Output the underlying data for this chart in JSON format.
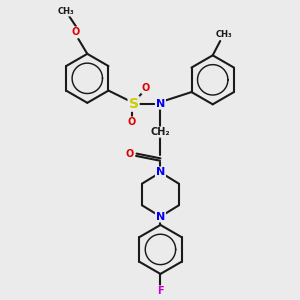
{
  "bg_color": "#ebebeb",
  "bond_color": "#1a1a1a",
  "bond_width": 1.5,
  "atom_colors": {
    "N": "#0000ee",
    "O": "#dd0000",
    "S": "#cccc00",
    "F": "#cc00cc",
    "C": "#1a1a1a"
  },
  "font_size": 8,
  "font_size_small": 7,
  "xlim": [
    0,
    10
  ],
  "ylim": [
    0,
    10
  ]
}
